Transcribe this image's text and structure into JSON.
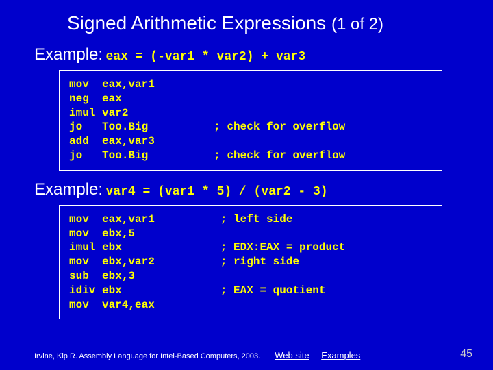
{
  "title_main": "Signed Arithmetic Expressions",
  "title_sub": "(1 of 2)",
  "example1": {
    "label": "Example:",
    "expr": "eax = (-var1 * var2) + var3",
    "code": "mov  eax,var1\nneg  eax\nimul var2\njo   Too.Big          ; check for overflow\nadd  eax,var3\njo   Too.Big          ; check for overflow"
  },
  "example2": {
    "label": "Example:",
    "expr": "var4 = (var1 * 5) / (var2 - 3)",
    "code": "mov  eax,var1          ; left side\nmov  ebx,5\nimul ebx               ; EDX:EAX = product\nmov  ebx,var2          ; right side\nsub  ebx,3\nidiv ebx               ; EAX = quotient\nmov  var4,eax"
  },
  "footer": {
    "citation": "Irvine, Kip R. Assembly Language for Intel-Based Computers, 2003.",
    "link1": "Web site",
    "link2": "Examples",
    "page": "45"
  },
  "colors": {
    "background": "#0000cc",
    "text": "#ffffff",
    "code": "#ffff00",
    "pagenum": "#cccccc"
  }
}
